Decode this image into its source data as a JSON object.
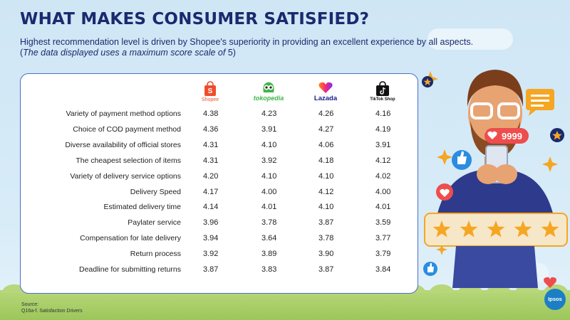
{
  "header": {
    "title": "WHAT MAKES CONSUMER SATISFIED?",
    "subtitle": "Highest recommendation level is driven by Shopee's superiority in providing an excellent experience by all aspects.",
    "note_open": "(",
    "note_italic": "The data displayed uses a maximum score scale of",
    "note_tail": " 5)"
  },
  "brands": [
    {
      "name": "Shopee",
      "color": "#ee4d2d"
    },
    {
      "name": "tokopedia",
      "color": "#42b549"
    },
    {
      "name": "Lazada",
      "color": "#1a1a8c"
    },
    {
      "name": "TikTok Shop",
      "color": "#111111"
    }
  ],
  "illustration": {
    "likes_count": "9999",
    "stars_rating": 5
  },
  "chart_data": {
    "type": "table",
    "columns": [
      "Shopee",
      "tokopedia",
      "Lazada",
      "TikTok Shop"
    ],
    "rows": [
      {
        "label": "Variety of payment method options",
        "values": [
          "4.38",
          "4.23",
          "4.26",
          "4.16"
        ]
      },
      {
        "label": "Choice of COD payment method",
        "values": [
          "4.36",
          "3.91",
          "4.27",
          "4.19"
        ]
      },
      {
        "label": "Diverse availability of official stores",
        "values": [
          "4.31",
          "4.10",
          "4.06",
          "3.91"
        ]
      },
      {
        "label": "The cheapest selection of items",
        "values": [
          "4.31",
          "3.92",
          "4.18",
          "4.12"
        ]
      },
      {
        "label": "Variety of delivery service options",
        "values": [
          "4.20",
          "4.10",
          "4.10",
          "4.02"
        ]
      },
      {
        "label": "Delivery Speed",
        "values": [
          "4.17",
          "4.00",
          "4.12",
          "4.00"
        ]
      },
      {
        "label": "Estimated delivery time",
        "values": [
          "4.14",
          "4.01",
          "4.10",
          "4.01"
        ]
      },
      {
        "label": "Paylater service",
        "values": [
          "3.96",
          "3.78",
          "3.87",
          "3.59"
        ]
      },
      {
        "label": "Compensation for late delivery",
        "values": [
          "3.94",
          "3.64",
          "3.78",
          "3.77"
        ]
      },
      {
        "label": "Return process",
        "values": [
          "3.92",
          "3.89",
          "3.90",
          "3.79"
        ]
      },
      {
        "label": "Deadline for submitting returns",
        "values": [
          "3.87",
          "3.83",
          "3.87",
          "3.84"
        ]
      }
    ],
    "scale_max": 5
  },
  "footer": {
    "source_label": "Source:",
    "source_text": "Q16a-f. Satisfaction Drivers",
    "brand": "Ipsos"
  }
}
